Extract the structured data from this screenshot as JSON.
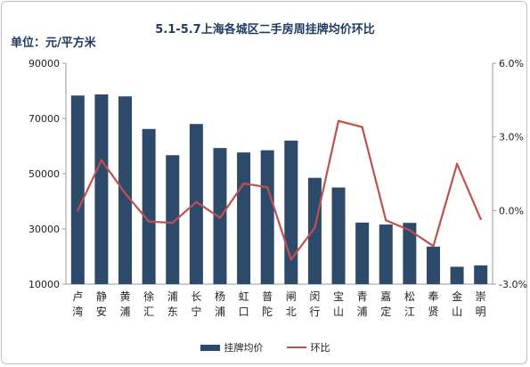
{
  "chart_data": {
    "type": "bar",
    "title": "5.1-5.7上海各城区二手房周挂牌均价环比",
    "unit_label": "单位：元/平方米",
    "categories": [
      [
        "卢",
        "湾"
      ],
      [
        "静",
        "安"
      ],
      [
        "黄",
        "浦"
      ],
      [
        "徐",
        "汇"
      ],
      [
        "浦",
        "东"
      ],
      [
        "长",
        "宁"
      ],
      [
        "杨",
        "浦"
      ],
      [
        "虹",
        "口"
      ],
      [
        "普",
        "陀"
      ],
      [
        "闸",
        "北"
      ],
      [
        "闵",
        "行"
      ],
      [
        "宝",
        "山"
      ],
      [
        "青",
        "浦"
      ],
      [
        "嘉",
        "定"
      ],
      [
        "松",
        "江"
      ],
      [
        "奉",
        "贤"
      ],
      [
        "金",
        "山"
      ],
      [
        "崇",
        "明"
      ]
    ],
    "series": [
      {
        "name": "挂牌均价",
        "axis": "left",
        "type": "bar",
        "color": "#2e4a6b",
        "values": [
          78300,
          78700,
          78000,
          66200,
          56700,
          68000,
          59300,
          57700,
          58500,
          62000,
          48500,
          45000,
          32300,
          31600,
          32200,
          23600,
          16300,
          16800
        ]
      },
      {
        "name": "环比",
        "axis": "right",
        "type": "line",
        "color": "#c0504d",
        "values": [
          0.0,
          2.05,
          0.7,
          -0.45,
          -0.5,
          0.35,
          -0.3,
          1.1,
          0.95,
          -2.0,
          -0.7,
          3.65,
          3.4,
          -0.4,
          -0.8,
          -1.45,
          1.9,
          -0.35
        ]
      }
    ],
    "y_left": {
      "min": 10000,
      "max": 90000,
      "ticks": [
        10000,
        30000,
        50000,
        70000,
        90000
      ]
    },
    "y_right": {
      "min": -3.0,
      "max": 6.0,
      "ticks": [
        -3.0,
        0.0,
        3.0,
        6.0
      ],
      "tick_labels": [
        "-3.0%",
        "0.0%",
        "3.0%",
        "6.0%"
      ]
    },
    "grid": false,
    "legend": "bottom-center"
  }
}
